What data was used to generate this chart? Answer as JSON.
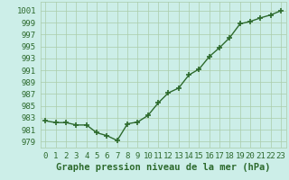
{
  "x": [
    0,
    1,
    2,
    3,
    4,
    5,
    6,
    7,
    8,
    9,
    10,
    11,
    12,
    13,
    14,
    15,
    16,
    17,
    18,
    19,
    20,
    21,
    22,
    23
  ],
  "y": [
    982.5,
    982.2,
    982.2,
    981.8,
    981.8,
    980.5,
    980.0,
    979.2,
    982.0,
    982.3,
    983.4,
    985.5,
    987.2,
    988.0,
    990.2,
    991.2,
    993.3,
    994.8,
    996.5,
    998.8,
    999.2,
    999.8,
    1000.3,
    1001.0
  ],
  "line_color": "#2d6a2d",
  "marker_color": "#2d6a2d",
  "bg_color": "#cceee8",
  "grid_color": "#aaccaa",
  "ylabel_ticks": [
    979,
    981,
    983,
    985,
    987,
    989,
    991,
    993,
    995,
    997,
    999,
    1001
  ],
  "ylim": [
    978.0,
    1002.5
  ],
  "xlim": [
    -0.5,
    23.5
  ],
  "xlabel": "Graphe pression niveau de la mer (hPa)",
  "xlabel_fontsize": 7.5,
  "tick_fontsize": 6.5,
  "line_width": 1.0,
  "marker_size": 4
}
